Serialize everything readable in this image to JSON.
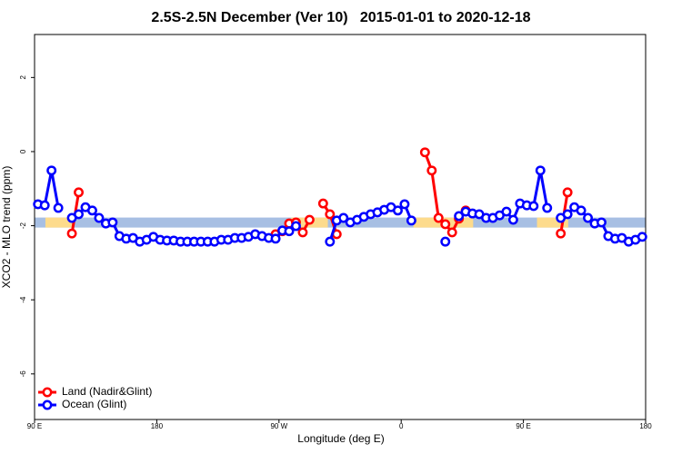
{
  "chart_data": {
    "type": "line",
    "title": "2.5S-2.5N December (Ver 10)   2015-01-01 to 2020-12-18",
    "x_label": "Longitude (deg E)",
    "y_label": "XCO2 - MLO trend (ppm)",
    "xlim": [
      90,
      540
    ],
    "ylim": [
      -7.23,
      3.16
    ],
    "xticks": [
      {
        "value": 90,
        "label": "90 E"
      },
      180,
      {
        "value": 270,
        "label": "90 W"
      },
      {
        "value": 360,
        "label": "0"
      },
      {
        "value": 450,
        "label": "90 E"
      },
      {
        "value": 540,
        "label": "180"
      }
    ],
    "yticks": [
      -6,
      -4,
      -2,
      0,
      2
    ],
    "legend": "bottomleft",
    "band": {
      "range": [
        -2.05,
        -1.78
      ],
      "color": "#a7bfe3",
      "land_color": "#fddb8c",
      "land_segments": [
        [
          98,
          118
        ],
        [
          279,
          306
        ],
        [
          369,
          413
        ],
        [
          460,
          483
        ]
      ]
    },
    "x": [
      92.5,
      97.5,
      102.5,
      107.5,
      112.5,
      117.5,
      122.5,
      127.5,
      132.5,
      137.5,
      142.5,
      147.5,
      152.5,
      157.5,
      162.5,
      167.5,
      172.5,
      177.5,
      182.5,
      187.5,
      192.5,
      197.5,
      202.5,
      207.5,
      212.5,
      217.5,
      222.5,
      227.5,
      232.5,
      237.5,
      242.5,
      247.5,
      252.5,
      257.5,
      262.5,
      267.5,
      272.5,
      277.5,
      282.5,
      287.5,
      292.5,
      297.5,
      302.5,
      307.5,
      312.5,
      317.5,
      322.5,
      327.5,
      332.5,
      337.5,
      342.5,
      347.5,
      352.5,
      357.5,
      362.5,
      367.5,
      372.5,
      377.5,
      382.5,
      387.5,
      392.5,
      397.5,
      402.5,
      407.5,
      412.5,
      417.5,
      422.5,
      427.5,
      432.5,
      437.5,
      442.5,
      447.5,
      452.5,
      457.5,
      462.5,
      467.5,
      472.5,
      477.5,
      482.5,
      487.5,
      492.5,
      497.5,
      502.5,
      507.5,
      512.5,
      517.5,
      522.5,
      527.5,
      532.5,
      537.5
    ],
    "series": [
      {
        "name": "Land (Nadir&Glint)",
        "color": "#ff0000",
        "values": [
          null,
          null,
          null,
          null,
          null,
          -2.21,
          -1.1,
          null,
          null,
          null,
          null,
          null,
          null,
          null,
          null,
          null,
          null,
          null,
          null,
          null,
          null,
          null,
          null,
          null,
          null,
          null,
          null,
          null,
          null,
          null,
          null,
          null,
          null,
          null,
          null,
          -2.23,
          -2.15,
          -1.94,
          -1.91,
          -2.18,
          -1.84,
          null,
          -1.4,
          -1.69,
          -2.23,
          null,
          null,
          null,
          null,
          null,
          null,
          null,
          null,
          null,
          null,
          null,
          null,
          -0.02,
          -0.51,
          -1.79,
          -1.96,
          -2.18,
          -1.81,
          -1.59,
          null,
          null,
          null,
          null,
          null,
          null,
          null,
          null,
          null,
          null,
          null,
          null,
          null,
          -2.21,
          -1.1,
          null,
          null,
          null,
          null,
          null,
          null,
          null,
          null,
          null,
          null,
          null
        ]
      },
      {
        "name": "Ocean (Glint)",
        "color": "#0000ff",
        "values": [
          -1.42,
          -1.45,
          -0.51,
          -1.52,
          null,
          -1.79,
          -1.69,
          -1.5,
          -1.59,
          -1.79,
          -1.94,
          -1.91,
          -2.28,
          -2.35,
          -2.33,
          -2.43,
          -2.38,
          -2.3,
          -2.38,
          -2.4,
          -2.4,
          -2.43,
          -2.43,
          -2.43,
          -2.43,
          -2.43,
          -2.43,
          -2.38,
          -2.38,
          -2.33,
          -2.33,
          -2.3,
          -2.23,
          -2.28,
          -2.33,
          -2.35,
          -2.13,
          -2.15,
          -2.01,
          null,
          null,
          null,
          null,
          -2.43,
          -1.86,
          -1.79,
          -1.91,
          -1.84,
          -1.76,
          -1.69,
          -1.64,
          -1.57,
          -1.5,
          -1.59,
          -1.42,
          -1.86,
          null,
          null,
          null,
          null,
          -2.43,
          null,
          -1.74,
          -1.62,
          -1.67,
          -1.69,
          -1.79,
          -1.79,
          -1.72,
          -1.62,
          -1.84,
          -1.4,
          -1.45,
          -1.47,
          -0.51,
          -1.52,
          null,
          -1.79,
          -1.69,
          -1.5,
          -1.59,
          -1.79,
          -1.94,
          -1.91,
          -2.28,
          -2.35,
          -2.33,
          -2.43,
          -2.38,
          -2.3
        ]
      }
    ]
  }
}
